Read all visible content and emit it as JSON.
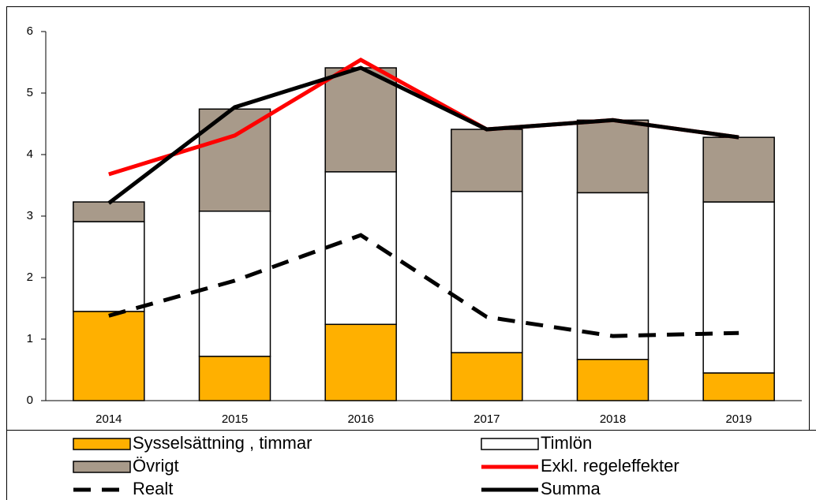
{
  "chart_data": {
    "type": "bar",
    "stacked": true,
    "categories": [
      "2014",
      "2015",
      "2016",
      "2017",
      "2018",
      "2019"
    ],
    "ylim": [
      0,
      6
    ],
    "yticks": [
      0,
      1,
      2,
      3,
      4,
      5,
      6
    ],
    "grid": false,
    "series": [
      {
        "name": "Sysselsättning , timmar",
        "type": "bar",
        "color": "#ffb000",
        "values": [
          1.45,
          0.72,
          1.24,
          0.78,
          0.67,
          0.45
        ]
      },
      {
        "name": "Timlön",
        "type": "bar",
        "color": "#ffffff",
        "values": [
          1.46,
          2.36,
          2.48,
          2.62,
          2.71,
          2.78
        ]
      },
      {
        "name": "Övrigt",
        "type": "bar",
        "color": "#a89a8a",
        "values": [
          0.32,
          1.66,
          1.69,
          1.01,
          1.18,
          1.05
        ]
      },
      {
        "name": "Exkl. regeleffekter",
        "type": "line",
        "color": "#ff0000",
        "values": [
          3.68,
          4.31,
          5.54,
          4.41,
          4.56,
          4.28
        ]
      },
      {
        "name": "Realt",
        "type": "line",
        "dashed": true,
        "color": "#000000",
        "values": [
          1.38,
          1.95,
          2.69,
          1.36,
          1.05,
          1.1
        ]
      },
      {
        "name": "Summa",
        "type": "line",
        "color": "#000000",
        "values": [
          3.21,
          4.77,
          5.41,
          4.41,
          4.56,
          4.28
        ]
      }
    ]
  }
}
